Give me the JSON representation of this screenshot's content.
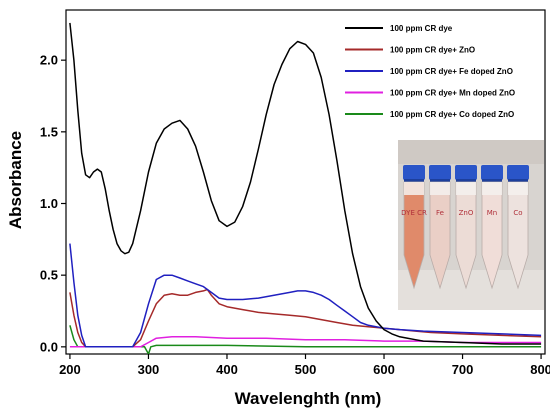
{
  "chart_data": {
    "type": "line",
    "xlabel": "Wavelenghth (nm)",
    "ylabel": "Absorbance",
    "xlim": [
      195,
      805
    ],
    "ylim": [
      -0.05,
      2.35
    ],
    "xticks": [
      200,
      300,
      400,
      500,
      600,
      700,
      800
    ],
    "yticks": [
      0.0,
      0.5,
      1.0,
      1.5,
      2.0
    ],
    "ytick_labels": [
      "0.0",
      "0.5",
      "1.0",
      "1.5",
      "2.0"
    ],
    "grid": false,
    "legend_position": "top-right",
    "series": [
      {
        "name": "100 ppm CR dye",
        "color": "#000000",
        "points": [
          [
            200,
            2.26
          ],
          [
            205,
            2.0
          ],
          [
            210,
            1.65
          ],
          [
            215,
            1.35
          ],
          [
            220,
            1.2
          ],
          [
            225,
            1.18
          ],
          [
            230,
            1.22
          ],
          [
            235,
            1.24
          ],
          [
            240,
            1.22
          ],
          [
            245,
            1.1
          ],
          [
            250,
            0.95
          ],
          [
            255,
            0.82
          ],
          [
            260,
            0.72
          ],
          [
            265,
            0.67
          ],
          [
            270,
            0.65
          ],
          [
            275,
            0.66
          ],
          [
            280,
            0.72
          ],
          [
            290,
            0.95
          ],
          [
            300,
            1.22
          ],
          [
            310,
            1.42
          ],
          [
            320,
            1.52
          ],
          [
            330,
            1.56
          ],
          [
            340,
            1.58
          ],
          [
            350,
            1.52
          ],
          [
            360,
            1.4
          ],
          [
            370,
            1.22
          ],
          [
            380,
            1.02
          ],
          [
            390,
            0.88
          ],
          [
            400,
            0.84
          ],
          [
            410,
            0.87
          ],
          [
            420,
            0.98
          ],
          [
            430,
            1.15
          ],
          [
            440,
            1.38
          ],
          [
            450,
            1.62
          ],
          [
            460,
            1.83
          ],
          [
            470,
            1.97
          ],
          [
            480,
            2.08
          ],
          [
            490,
            2.13
          ],
          [
            500,
            2.11
          ],
          [
            510,
            2.05
          ],
          [
            520,
            1.88
          ],
          [
            530,
            1.62
          ],
          [
            540,
            1.3
          ],
          [
            550,
            0.95
          ],
          [
            560,
            0.65
          ],
          [
            570,
            0.42
          ],
          [
            580,
            0.27
          ],
          [
            590,
            0.18
          ],
          [
            600,
            0.12
          ],
          [
            610,
            0.09
          ],
          [
            620,
            0.07
          ],
          [
            630,
            0.06
          ],
          [
            640,
            0.05
          ],
          [
            650,
            0.04
          ],
          [
            700,
            0.03
          ],
          [
            750,
            0.02
          ],
          [
            800,
            0.02
          ]
        ]
      },
      {
        "name": "100 ppm CR dye+ ZnO",
        "color": "#a52a2a",
        "points": [
          [
            200,
            0.38
          ],
          [
            205,
            0.22
          ],
          [
            210,
            0.1
          ],
          [
            215,
            0.03
          ],
          [
            220,
            0.0
          ],
          [
            230,
            0.0
          ],
          [
            250,
            0.0
          ],
          [
            270,
            0.0
          ],
          [
            280,
            0.0
          ],
          [
            290,
            0.05
          ],
          [
            300,
            0.18
          ],
          [
            310,
            0.3
          ],
          [
            320,
            0.36
          ],
          [
            330,
            0.37
          ],
          [
            340,
            0.36
          ],
          [
            350,
            0.36
          ],
          [
            360,
            0.38
          ],
          [
            370,
            0.39
          ],
          [
            375,
            0.4
          ],
          [
            380,
            0.36
          ],
          [
            390,
            0.3
          ],
          [
            400,
            0.28
          ],
          [
            420,
            0.26
          ],
          [
            440,
            0.24
          ],
          [
            460,
            0.23
          ],
          [
            480,
            0.22
          ],
          [
            500,
            0.21
          ],
          [
            520,
            0.19
          ],
          [
            540,
            0.17
          ],
          [
            560,
            0.15
          ],
          [
            580,
            0.14
          ],
          [
            600,
            0.13
          ],
          [
            620,
            0.12
          ],
          [
            640,
            0.11
          ],
          [
            660,
            0.1
          ],
          [
            700,
            0.09
          ],
          [
            750,
            0.08
          ],
          [
            800,
            0.07
          ]
        ]
      },
      {
        "name": "100 ppm CR dye+ Fe doped ZnO",
        "color": "#2020c0",
        "points": [
          [
            200,
            0.72
          ],
          [
            205,
            0.45
          ],
          [
            210,
            0.22
          ],
          [
            215,
            0.08
          ],
          [
            220,
            0.0
          ],
          [
            240,
            0.0
          ],
          [
            260,
            0.0
          ],
          [
            280,
            0.0
          ],
          [
            290,
            0.1
          ],
          [
            300,
            0.3
          ],
          [
            310,
            0.47
          ],
          [
            320,
            0.5
          ],
          [
            330,
            0.5
          ],
          [
            340,
            0.48
          ],
          [
            350,
            0.46
          ],
          [
            360,
            0.44
          ],
          [
            370,
            0.42
          ],
          [
            380,
            0.38
          ],
          [
            390,
            0.34
          ],
          [
            400,
            0.33
          ],
          [
            420,
            0.33
          ],
          [
            440,
            0.34
          ],
          [
            460,
            0.36
          ],
          [
            480,
            0.38
          ],
          [
            490,
            0.39
          ],
          [
            500,
            0.39
          ],
          [
            510,
            0.38
          ],
          [
            520,
            0.36
          ],
          [
            530,
            0.33
          ],
          [
            540,
            0.29
          ],
          [
            550,
            0.25
          ],
          [
            560,
            0.21
          ],
          [
            570,
            0.17
          ],
          [
            580,
            0.15
          ],
          [
            600,
            0.13
          ],
          [
            620,
            0.12
          ],
          [
            650,
            0.11
          ],
          [
            700,
            0.1
          ],
          [
            750,
            0.09
          ],
          [
            800,
            0.08
          ]
        ]
      },
      {
        "name": "100 ppm CR dye+ Mn doped ZnO",
        "color": "#e020e0",
        "points": [
          [
            200,
            0.0
          ],
          [
            250,
            0.0
          ],
          [
            290,
            0.0
          ],
          [
            300,
            0.03
          ],
          [
            310,
            0.06
          ],
          [
            330,
            0.07
          ],
          [
            360,
            0.07
          ],
          [
            400,
            0.06
          ],
          [
            450,
            0.06
          ],
          [
            500,
            0.05
          ],
          [
            550,
            0.05
          ],
          [
            600,
            0.04
          ],
          [
            650,
            0.04
          ],
          [
            700,
            0.03
          ],
          [
            750,
            0.03
          ],
          [
            800,
            0.03
          ]
        ]
      },
      {
        "name": "100 ppm CR dye+ Co doped ZnO",
        "color": "#1a8a1a",
        "points": [
          [
            200,
            0.15
          ],
          [
            205,
            0.05
          ],
          [
            210,
            0.0
          ],
          [
            250,
            0.0
          ],
          [
            295,
            0.0
          ],
          [
            300,
            -0.05
          ],
          [
            303,
            0.0
          ],
          [
            310,
            0.01
          ],
          [
            350,
            0.01
          ],
          [
            400,
            0.01
          ],
          [
            500,
            0.0
          ],
          [
            600,
            0.0
          ],
          [
            700,
            0.0
          ],
          [
            800,
            0.0
          ]
        ]
      }
    ],
    "inset_photo": {
      "tube_labels": [
        "DYE CR",
        "Fe",
        "ZnO",
        "Mn",
        "Co"
      ]
    }
  }
}
